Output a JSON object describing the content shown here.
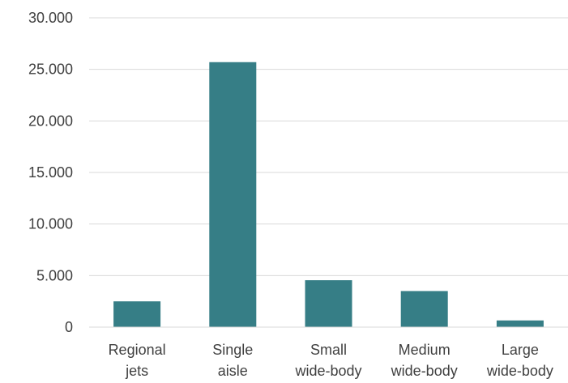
{
  "chart_data": {
    "type": "bar",
    "categories": [
      [
        "Regional",
        "jets"
      ],
      [
        "Single",
        "aisle"
      ],
      [
        "Small",
        "wide-body"
      ],
      [
        "Medium",
        "wide-body"
      ],
      [
        "Large",
        "wide-body"
      ]
    ],
    "values": [
      2500,
      25700,
      4550,
      3500,
      650
    ],
    "ylim": [
      0,
      30000
    ],
    "yticks": [
      0,
      5000,
      10000,
      15000,
      20000,
      25000,
      30000
    ],
    "ytick_labels": [
      "0",
      "5.000",
      "10.000",
      "15.000",
      "20.000",
      "25.000",
      "30.000"
    ],
    "bar_color": "#367e86",
    "grid": true,
    "legend": "none"
  }
}
